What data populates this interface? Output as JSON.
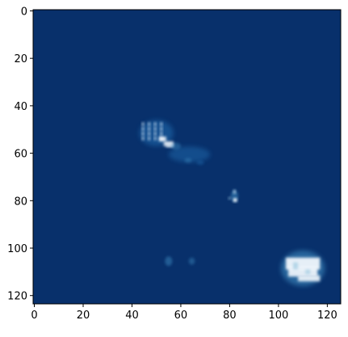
{
  "chart_data": {
    "type": "heatmap",
    "colormap": "Blues_r",
    "background_color": "#08306b",
    "highlight_color": "#f7fbff",
    "grid": false,
    "x_ticks": [
      "0",
      "20",
      "40",
      "60",
      "80",
      "100",
      "120"
    ],
    "y_ticks": [
      "0",
      "20",
      "40",
      "60",
      "80",
      "100",
      "120"
    ],
    "xlim": [
      -0.5,
      125.5
    ],
    "ylim": [
      123.5,
      -0.5
    ],
    "value_range": [
      0,
      1
    ],
    "hotspots": [
      {
        "region": "diagonal-cluster-upper",
        "x_range": [
          43,
          57
        ],
        "y_range": [
          46,
          57
        ],
        "peak": 0.9
      },
      {
        "region": "diagonal-trail",
        "x_range": [
          55,
          72
        ],
        "y_range": [
          55,
          66
        ],
        "peak": 0.35
      },
      {
        "region": "isolated-point",
        "x_range": [
          80,
          84
        ],
        "y_range": [
          75,
          81
        ],
        "peak": 1.0
      },
      {
        "region": "bottom-faint-spots",
        "x_range": [
          53,
          66
        ],
        "y_range": [
          103,
          108
        ],
        "peak": 0.3
      },
      {
        "region": "lower-right-block",
        "x_range": [
          102,
          118
        ],
        "y_range": [
          102,
          115
        ],
        "peak": 1.0
      }
    ]
  }
}
